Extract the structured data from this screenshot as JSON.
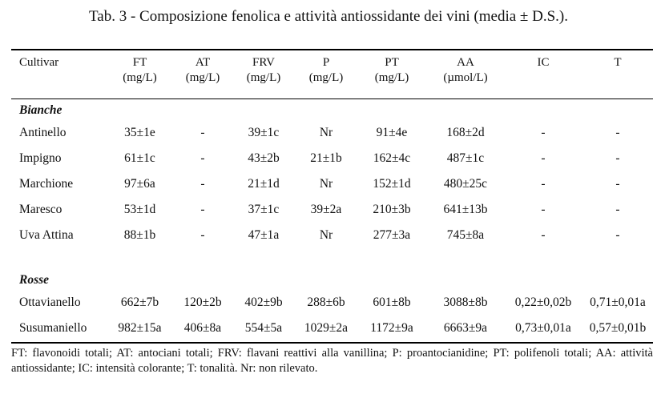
{
  "title": "Tab. 3 - Composizione fenolica e attività antiossidante dei vini (media ± D.S.).",
  "columns": [
    {
      "name": "Cultivar",
      "unit": ""
    },
    {
      "name": "FT",
      "unit": "(mg/L)"
    },
    {
      "name": "AT",
      "unit": "(mg/L)"
    },
    {
      "name": "FRV",
      "unit": "(mg/L)"
    },
    {
      "name": "P",
      "unit": "(mg/L)"
    },
    {
      "name": "PT",
      "unit": "(mg/L)"
    },
    {
      "name": "AA",
      "unit": "(µmol/L)"
    },
    {
      "name": "IC",
      "unit": ""
    },
    {
      "name": "T",
      "unit": ""
    }
  ],
  "groups": [
    {
      "name": "Bianche",
      "rows": [
        [
          "Antinello",
          "35±1e",
          "-",
          "39±1c",
          "Nr",
          "91±4e",
          "168±2d",
          "-",
          "-"
        ],
        [
          "Impigno",
          "61±1c",
          "-",
          "43±2b",
          "21±1b",
          "162±4c",
          "487±1c",
          "-",
          "-"
        ],
        [
          "Marchione",
          "97±6a",
          "-",
          "21±1d",
          "Nr",
          "152±1d",
          "480±25c",
          "-",
          "-"
        ],
        [
          "Maresco",
          "53±1d",
          "-",
          "37±1c",
          "39±2a",
          "210±3b",
          "641±13b",
          "-",
          "-"
        ],
        [
          "Uva Attina",
          "88±1b",
          "-",
          "47±1a",
          "Nr",
          "277±3a",
          "745±8a",
          "-",
          "-"
        ]
      ]
    },
    {
      "name": "Rosse",
      "rows": [
        [
          "Ottavianello",
          "662±7b",
          "120±2b",
          "402±9b",
          "288±6b",
          "601±8b",
          "3088±8b",
          "0,22±0,02b",
          "0,71±0,01a"
        ],
        [
          "Susumaniello",
          "982±15a",
          "406±8a",
          "554±5a",
          "1029±2a",
          "1172±9a",
          "6663±9a",
          "0,73±0,01a",
          "0,57±0,01b"
        ]
      ]
    }
  ],
  "footnote": "FT: flavonoidi totali; AT: antociani totali; FRV: flavani reattivi alla vanillina; P: proantocianidine; PT: polifenoli totali; AA: attività antiossidante; IC: intensità colorante; T: tonalità. Nr: non rilevato."
}
